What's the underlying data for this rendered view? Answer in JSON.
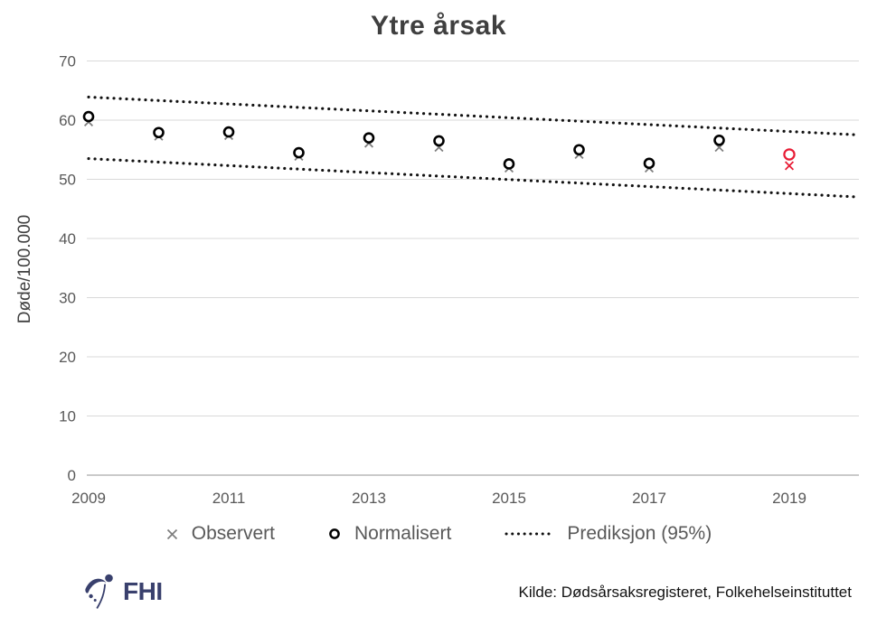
{
  "colors": {
    "title_text": "#3f3f3f",
    "tick_text": "#595959",
    "gridline": "#d9d9d9",
    "baseline": "#b9b9b9",
    "observert_gray": "#7f7f7f",
    "normalisert_black": "#000000",
    "prediction_black": "#111111",
    "highlight_red": "#e81c35",
    "fhi_navy": "#39406d"
  },
  "chart_data": {
    "type": "scatter",
    "title": "Ytre årsak",
    "ylabel": "Døde/100.000",
    "xlabel": "",
    "ylim": [
      0,
      70
    ],
    "yticks": [
      0,
      10,
      20,
      30,
      40,
      50,
      60,
      70
    ],
    "xticks": [
      2009,
      2011,
      2013,
      2015,
      2017,
      2019
    ],
    "grid": "horizontal",
    "legend_position": "bottom",
    "years": [
      2009,
      2010,
      2011,
      2012,
      2013,
      2014,
      2015,
      2016,
      2017,
      2018,
      2019
    ],
    "series": [
      {
        "name": "Observert",
        "marker": "x",
        "color": "#7f7f7f",
        "values": [
          59.7,
          57.3,
          57.4,
          53.9,
          56.1,
          55.4,
          51.9,
          54.2,
          51.9,
          55.4,
          52.3
        ]
      },
      {
        "name": "Normalisert",
        "marker": "circle",
        "color": "#000000",
        "values": [
          60.6,
          57.9,
          58.0,
          54.5,
          57.0,
          56.5,
          52.6,
          55.0,
          52.7,
          56.6,
          54.2
        ]
      }
    ],
    "prediction": {
      "name": "Prediksjon (95%)",
      "style": "dotted",
      "color": "#111111",
      "x_start": 2009,
      "x_end": 2020,
      "upper": [
        63.9,
        57.5
      ],
      "lower": [
        53.5,
        47.0
      ]
    },
    "highlight": {
      "year": 2019,
      "color": "#e81c35"
    }
  },
  "footer": {
    "logo_text": "FHI",
    "source": "Kilde: Dødsårsaksregisteret, Folkehelseinstituttet"
  }
}
